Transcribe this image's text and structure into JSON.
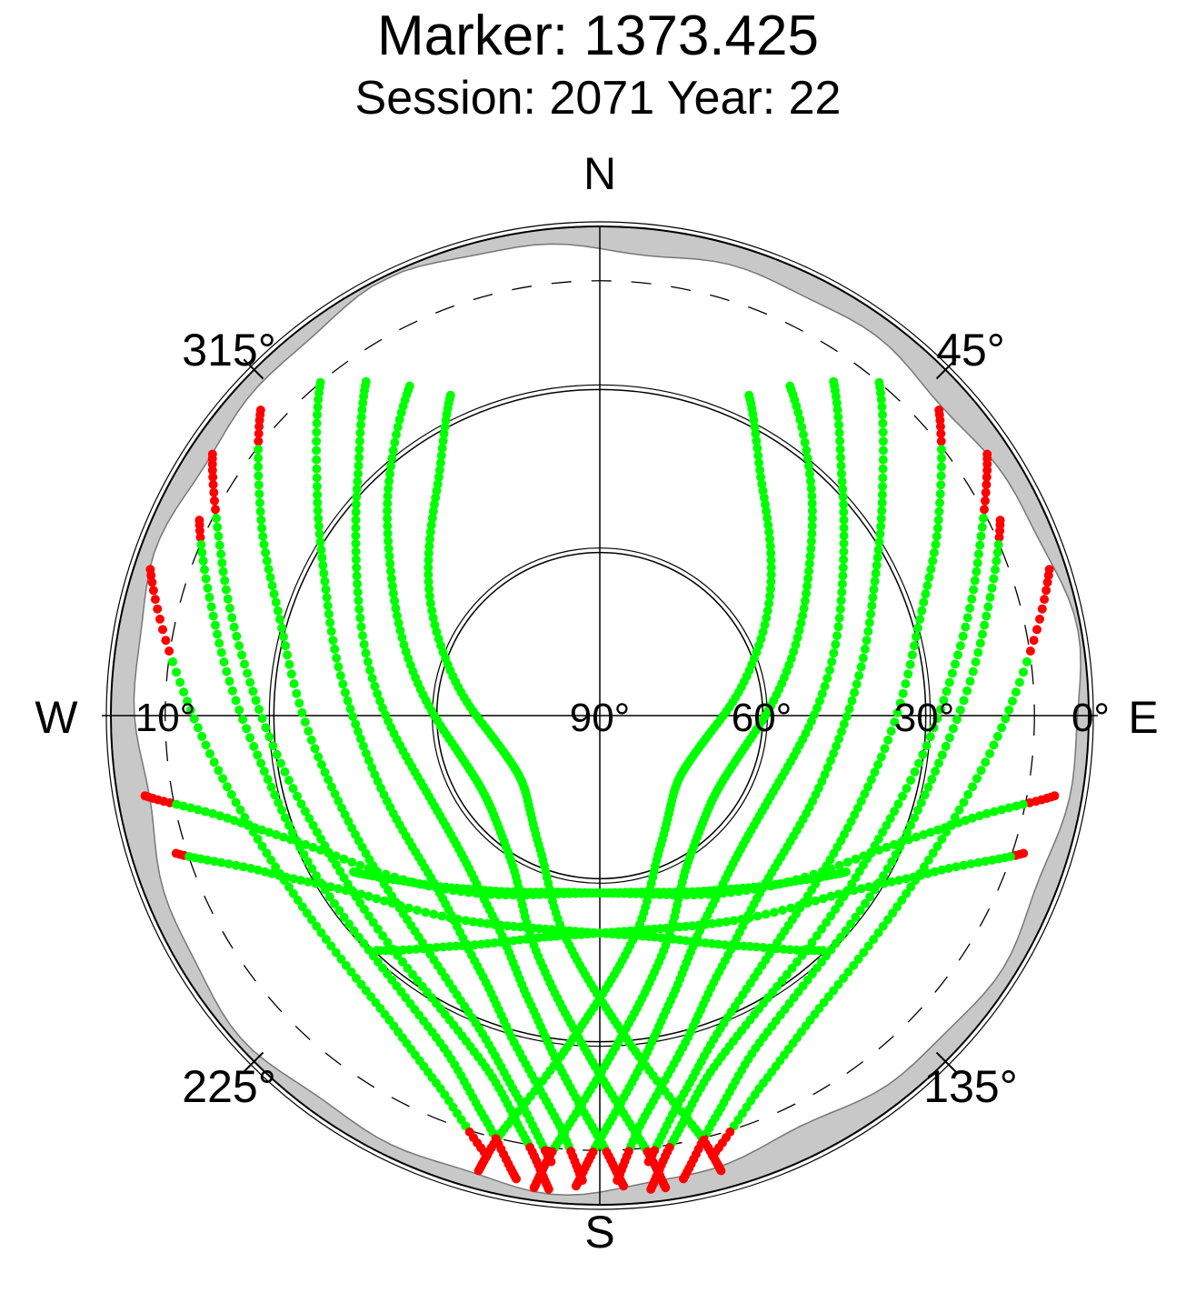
{
  "title": "Marker: 1373.425",
  "subtitle": "Session: 2071 Year: 22",
  "chart_data": {
    "type": "scatter",
    "projection": "polar-skyplot",
    "compass_labels": [
      "N",
      "E",
      "S",
      "W"
    ],
    "azimuth_labels": [
      "45°",
      "135°",
      "225°",
      "315°"
    ],
    "elevation_labels": [
      "0°",
      "30°",
      "60°",
      "90°",
      "10°"
    ],
    "elevation_circles_deg": [
      0,
      30,
      60
    ],
    "elevation_mask_deg": 10,
    "colors": {
      "valid": "#00ff00",
      "masked": "#ff0000",
      "horizon": "#c8c8c8",
      "grid": "#000000"
    },
    "series": [
      {
        "points": [
          [
            25,
            25
          ],
          [
            38,
            35
          ],
          [
            50,
            52
          ],
          [
            62,
            75
          ],
          [
            70,
            102
          ],
          [
            71,
            132
          ],
          [
            63,
            156
          ],
          [
            50,
            170
          ],
          [
            38,
            180
          ],
          [
            26,
            187
          ],
          [
            12,
            193
          ],
          [
            3,
            195
          ]
        ],
        "mask_below": 10
      },
      {
        "points": [
          [
            20,
            30
          ],
          [
            32,
            42
          ],
          [
            45,
            58
          ],
          [
            56,
            80
          ],
          [
            63,
            104
          ],
          [
            64,
            128
          ],
          [
            58,
            150
          ],
          [
            46,
            164
          ],
          [
            34,
            174
          ],
          [
            22,
            181
          ],
          [
            10,
            186
          ],
          [
            2,
            188
          ]
        ],
        "mask_below": 10
      },
      {
        "points": [
          [
            15,
            35
          ],
          [
            28,
            46
          ],
          [
            40,
            63
          ],
          [
            50,
            88
          ],
          [
            55,
            112
          ],
          [
            54,
            135
          ],
          [
            47,
            154
          ],
          [
            36,
            166
          ],
          [
            24,
            174
          ],
          [
            12,
            180
          ],
          [
            3,
            183
          ]
        ],
        "mask_below": 10
      },
      {
        "points": [
          [
            10,
            40
          ],
          [
            24,
            52
          ],
          [
            36,
            68
          ],
          [
            45,
            92
          ],
          [
            48,
            117
          ],
          [
            46,
            138
          ],
          [
            38,
            155
          ],
          [
            27,
            166
          ],
          [
            15,
            174
          ],
          [
            4,
            178
          ]
        ],
        "mask_below": 10
      },
      {
        "points": [
          [
            6,
            48
          ],
          [
            18,
            60
          ],
          [
            30,
            76
          ],
          [
            38,
            100
          ],
          [
            40,
            122
          ],
          [
            37,
            142
          ],
          [
            29,
            158
          ],
          [
            18,
            168
          ],
          [
            7,
            174
          ]
        ],
        "mask_below": 10
      },
      {
        "points": [
          [
            4,
            56
          ],
          [
            15,
            68
          ],
          [
            26,
            86
          ],
          [
            33,
            108
          ],
          [
            34,
            128
          ],
          [
            30,
            148
          ],
          [
            22,
            162
          ],
          [
            11,
            170
          ],
          [
            2,
            174
          ]
        ],
        "mask_below": 10
      },
      {
        "points": [
          [
            8,
            64
          ],
          [
            18,
            78
          ],
          [
            27,
            98
          ],
          [
            30,
            118
          ],
          [
            29,
            138
          ],
          [
            23,
            154
          ],
          [
            13,
            164
          ],
          [
            3,
            170
          ]
        ],
        "mask_below": 10
      },
      {
        "points": [
          [
            3,
            72
          ],
          [
            14,
            88
          ],
          [
            22,
            106
          ],
          [
            25,
            124
          ],
          [
            23,
            142
          ],
          [
            16,
            156
          ],
          [
            6,
            166
          ]
        ],
        "mask_below": 10
      },
      {
        "points": [
          [
            25,
            335
          ],
          [
            38,
            325
          ],
          [
            50,
            308
          ],
          [
            62,
            285
          ],
          [
            70,
            258
          ],
          [
            71,
            228
          ],
          [
            63,
            204
          ],
          [
            50,
            190
          ],
          [
            38,
            180
          ],
          [
            26,
            173
          ],
          [
            12,
            167
          ],
          [
            3,
            165
          ]
        ],
        "mask_below": 10
      },
      {
        "points": [
          [
            20,
            330
          ],
          [
            32,
            318
          ],
          [
            45,
            302
          ],
          [
            56,
            280
          ],
          [
            63,
            256
          ],
          [
            64,
            232
          ],
          [
            58,
            210
          ],
          [
            46,
            196
          ],
          [
            34,
            186
          ],
          [
            22,
            179
          ],
          [
            10,
            174
          ],
          [
            2,
            172
          ]
        ],
        "mask_below": 10
      },
      {
        "points": [
          [
            15,
            325
          ],
          [
            28,
            314
          ],
          [
            40,
            297
          ],
          [
            50,
            272
          ],
          [
            55,
            248
          ],
          [
            54,
            225
          ],
          [
            47,
            206
          ],
          [
            36,
            194
          ],
          [
            24,
            186
          ],
          [
            12,
            180
          ],
          [
            3,
            177
          ]
        ],
        "mask_below": 10
      },
      {
        "points": [
          [
            10,
            320
          ],
          [
            24,
            308
          ],
          [
            36,
            292
          ],
          [
            45,
            268
          ],
          [
            48,
            243
          ],
          [
            46,
            222
          ],
          [
            38,
            205
          ],
          [
            27,
            194
          ],
          [
            15,
            186
          ],
          [
            4,
            182
          ]
        ],
        "mask_below": 10
      },
      {
        "points": [
          [
            6,
            312
          ],
          [
            18,
            300
          ],
          [
            30,
            284
          ],
          [
            38,
            260
          ],
          [
            40,
            238
          ],
          [
            37,
            218
          ],
          [
            29,
            202
          ],
          [
            18,
            192
          ],
          [
            7,
            186
          ]
        ],
        "mask_below": 10
      },
      {
        "points": [
          [
            4,
            304
          ],
          [
            15,
            292
          ],
          [
            26,
            274
          ],
          [
            33,
            252
          ],
          [
            34,
            232
          ],
          [
            30,
            212
          ],
          [
            22,
            198
          ],
          [
            11,
            190
          ],
          [
            2,
            186
          ]
        ],
        "mask_below": 10
      },
      {
        "points": [
          [
            8,
            296
          ],
          [
            18,
            282
          ],
          [
            27,
            262
          ],
          [
            30,
            242
          ],
          [
            29,
            222
          ],
          [
            23,
            206
          ],
          [
            13,
            196
          ],
          [
            3,
            190
          ]
        ],
        "mask_below": 10
      },
      {
        "points": [
          [
            3,
            288
          ],
          [
            14,
            272
          ],
          [
            22,
            254
          ],
          [
            25,
            236
          ],
          [
            23,
            218
          ],
          [
            16,
            204
          ],
          [
            6,
            194
          ]
        ],
        "mask_below": 10
      },
      {
        "points": [
          [
            5,
            100
          ],
          [
            20,
            106
          ],
          [
            35,
            118
          ],
          [
            48,
            140
          ],
          [
            56,
            165
          ],
          [
            57,
            190
          ],
          [
            52,
            212
          ],
          [
            44,
            228
          ],
          [
            36,
            238
          ]
        ],
        "mask_below": 10
      },
      {
        "points": [
          [
            5,
            260
          ],
          [
            20,
            254
          ],
          [
            35,
            242
          ],
          [
            48,
            220
          ],
          [
            56,
            195
          ],
          [
            57,
            170
          ],
          [
            52,
            148
          ],
          [
            44,
            132
          ],
          [
            36,
            122
          ]
        ],
        "mask_below": 10
      },
      {
        "points": [
          [
            8,
            108
          ],
          [
            22,
            115
          ],
          [
            36,
            128
          ],
          [
            46,
            150
          ],
          [
            50,
            172
          ],
          [
            48,
            194
          ],
          [
            40,
            212
          ],
          [
            30,
            224
          ]
        ],
        "mask_below": 10
      },
      {
        "points": [
          [
            8,
            252
          ],
          [
            22,
            245
          ],
          [
            36,
            232
          ],
          [
            46,
            210
          ],
          [
            50,
            188
          ],
          [
            48,
            166
          ],
          [
            40,
            148
          ],
          [
            30,
            136
          ]
        ],
        "mask_below": 10
      }
    ]
  }
}
